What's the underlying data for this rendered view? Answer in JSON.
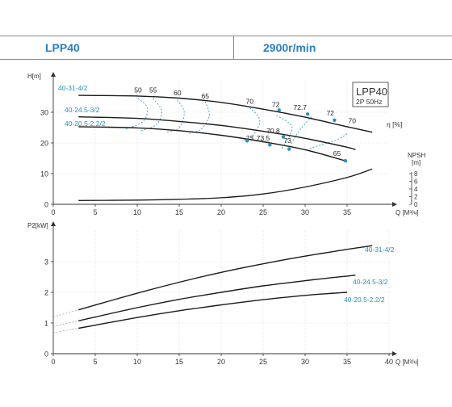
{
  "header": {
    "model": "LPP40",
    "speed": "2900r/min"
  },
  "colors": {
    "accent": "#2a7fc1",
    "curve": "#1a1a1a",
    "eff": "#2a8fb8",
    "axis": "#333333"
  },
  "chart_data": [
    {
      "type": "line",
      "id": "head",
      "ylabel": "H[m]",
      "xlabel": "Q [M³/ч]",
      "xlim": [
        0,
        40
      ],
      "ylim": [
        0,
        40
      ],
      "xticks": [
        0,
        5,
        10,
        15,
        20,
        25,
        30,
        35
      ],
      "yticks": [
        0,
        10,
        20,
        30
      ],
      "legend_box": {
        "title": "LPP40",
        "sub": "2P  50Hz"
      },
      "eff_label": "η [%]",
      "series": [
        {
          "name": "40-31-4/2",
          "x": [
            3,
            10,
            15,
            20,
            25,
            30,
            35,
            38
          ],
          "y": [
            35.5,
            35.3,
            34.6,
            33.2,
            31.0,
            28.4,
            25.3,
            23.5
          ]
        },
        {
          "name": "40-24.5-3/2",
          "x": [
            3,
            10,
            15,
            20,
            25,
            30,
            35,
            36
          ],
          "y": [
            28.5,
            28.0,
            27.0,
            25.7,
            23.8,
            21.5,
            18.6,
            17.8
          ]
        },
        {
          "name": "40-20.5-2.2/2",
          "x": [
            3,
            10,
            15,
            20,
            25,
            30,
            35
          ],
          "y": [
            25.3,
            24.9,
            24.0,
            22.5,
            20.4,
            17.8,
            14.0
          ]
        }
      ],
      "eff_labels": [
        {
          "text": "50",
          "x": 10.1,
          "y": 36.5
        },
        {
          "text": "55",
          "x": 11.9,
          "y": 36.5
        },
        {
          "text": "60",
          "x": 14.8,
          "y": 35.5
        },
        {
          "text": "65",
          "x": 18.1,
          "y": 34.5
        },
        {
          "text": "70",
          "x": 23.4,
          "y": 32.8
        },
        {
          "text": "72",
          "x": 26.5,
          "y": 31.7
        },
        {
          "text": "72.7",
          "x": 29.4,
          "y": 30.8
        },
        {
          "text": "72",
          "x": 33.0,
          "y": 29.0
        },
        {
          "text": "70",
          "x": 35.6,
          "y": 26.5
        },
        {
          "text": "70.8",
          "x": 26.2,
          "y": 23.1
        },
        {
          "text": "73",
          "x": 23.4,
          "y": 20.8
        },
        {
          "text": "73.5",
          "x": 25.0,
          "y": 20.8
        },
        {
          "text": "73",
          "x": 27.9,
          "y": 20.0
        },
        {
          "text": "65",
          "x": 33.8,
          "y": 15.8
        }
      ],
      "eff_points": [
        {
          "x": 26.9,
          "y": 30.7
        },
        {
          "x": 30.3,
          "y": 29.4
        },
        {
          "x": 33.5,
          "y": 27.4
        },
        {
          "x": 27.4,
          "y": 22.0
        },
        {
          "x": 23.1,
          "y": 20.7
        },
        {
          "x": 25.8,
          "y": 19.4
        },
        {
          "x": 28.1,
          "y": 18.0
        },
        {
          "x": 34.8,
          "y": 14.2
        }
      ],
      "npsh": {
        "label": "NPSH",
        "unit": "[m]",
        "ticks": [
          0,
          2,
          4,
          6,
          8
        ],
        "x": [
          3,
          10,
          15,
          20,
          25,
          30,
          35,
          38
        ],
        "y": [
          1.0,
          1.1,
          1.3,
          1.7,
          2.7,
          4.5,
          7.0,
          9.2
        ]
      }
    },
    {
      "type": "line",
      "id": "power",
      "ylabel": "P2[kW]",
      "xlabel": "Q [M³/ч]",
      "xlim": [
        0,
        40
      ],
      "ylim": [
        0,
        4
      ],
      "xticks": [
        0,
        5,
        10,
        15,
        20,
        25,
        30,
        35,
        40
      ],
      "yticks": [
        0,
        1,
        2,
        3
      ],
      "series": [
        {
          "name": "40-31-4/2",
          "x": [
            3,
            10,
            15,
            20,
            25,
            30,
            35,
            38
          ],
          "y": [
            1.43,
            1.97,
            2.33,
            2.65,
            2.93,
            3.18,
            3.4,
            3.52
          ]
        },
        {
          "name": "40-24.5-3/2",
          "x": [
            3,
            10,
            15,
            20,
            25,
            30,
            35,
            36
          ],
          "y": [
            1.07,
            1.5,
            1.77,
            2.0,
            2.21,
            2.38,
            2.53,
            2.56
          ]
        },
        {
          "name": "40-20.5-2.2/2",
          "x": [
            3,
            10,
            15,
            20,
            25,
            30,
            35
          ],
          "y": [
            0.83,
            1.18,
            1.4,
            1.59,
            1.76,
            1.9,
            2.0
          ]
        }
      ]
    }
  ]
}
